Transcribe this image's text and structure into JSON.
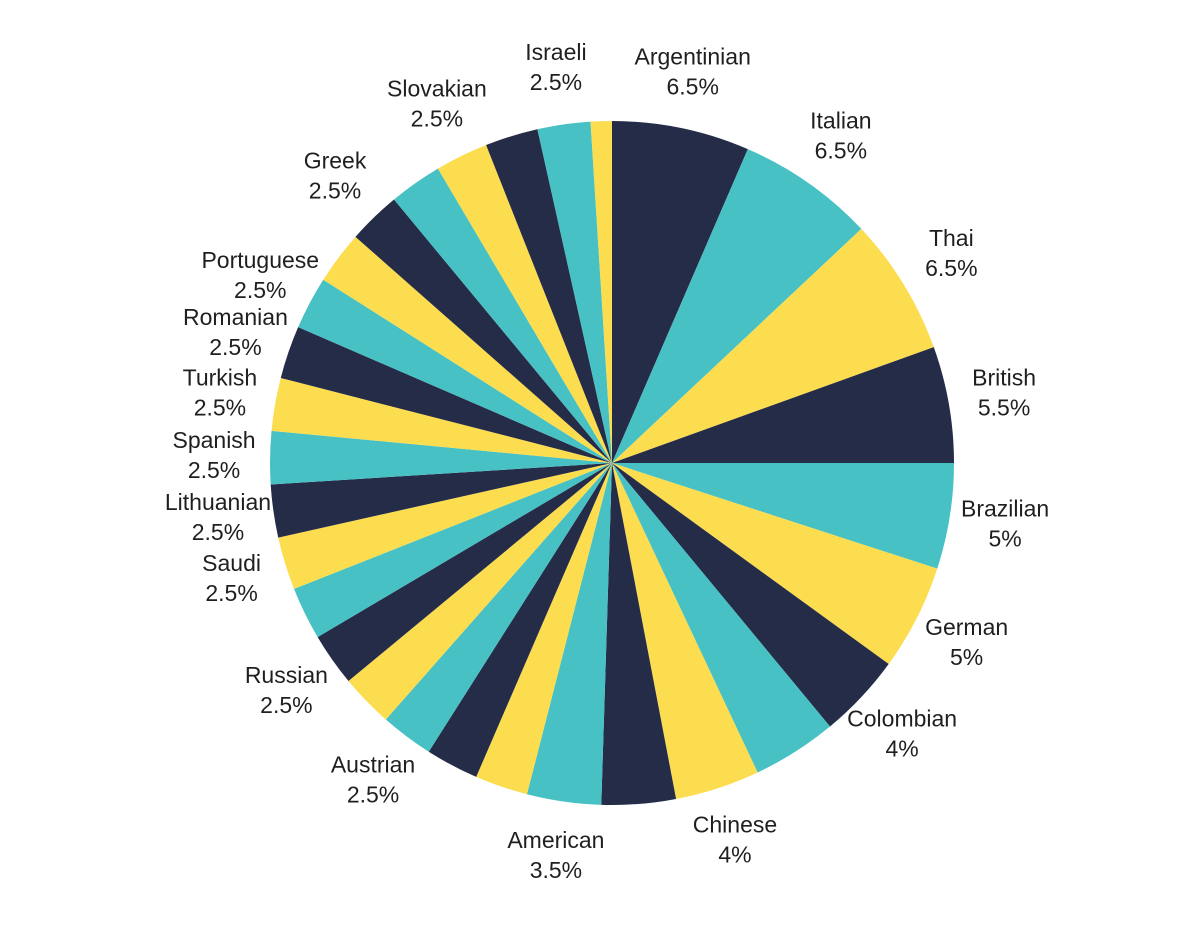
{
  "chart_data": {
    "type": "pie",
    "categories": [
      "Argentinian",
      "Italian",
      "Thai",
      "British",
      "Brazilian",
      "German",
      "Colombian",
      null,
      "Chinese",
      null,
      "American",
      null,
      null,
      "Austrian",
      null,
      "Russian",
      null,
      "Saudi",
      "Lithuanian",
      "Spanish",
      "Turkish",
      "Romanian",
      "Portuguese",
      null,
      "Greek",
      null,
      "Slovakian",
      null,
      "Israeli",
      null
    ],
    "values": [
      6.5,
      6.5,
      6.5,
      5.5,
      5,
      5,
      4,
      4,
      4,
      3.5,
      3.5,
      2.5,
      2.5,
      2.5,
      2.5,
      2.5,
      2.5,
      2.5,
      2.5,
      2.5,
      2.5,
      2.5,
      2.5,
      2.5,
      2.5,
      2.5,
      2.5,
      2.5,
      2.5,
      1
    ],
    "value_labels": [
      "6.5%",
      "6.5%",
      "6.5%",
      "5.5%",
      "5%",
      "5%",
      "4%",
      null,
      "4%",
      null,
      "3.5%",
      null,
      null,
      "2.5%",
      null,
      "2.5%",
      null,
      "2.5%",
      "2.5%",
      "2.5%",
      "2.5%",
      "2.5%",
      "2.5%",
      null,
      "2.5%",
      null,
      "2.5%",
      null,
      "2.5%",
      null
    ],
    "colors": [
      "#252c48",
      "#47c1c4",
      "#fddd50",
      "#252c48",
      "#47c1c4",
      "#fddd50",
      "#252c48",
      "#47c1c4",
      "#fddd50",
      "#252c48",
      "#47c1c4",
      "#fddd50",
      "#252c48",
      "#47c1c4",
      "#fddd50",
      "#252c48",
      "#47c1c4",
      "#fddd50",
      "#252c48",
      "#47c1c4",
      "#fddd50",
      "#252c48",
      "#47c1c4",
      "#fddd50",
      "#252c48",
      "#47c1c4",
      "#fddd50",
      "#252c48",
      "#47c1c4",
      "#fddd50"
    ]
  }
}
